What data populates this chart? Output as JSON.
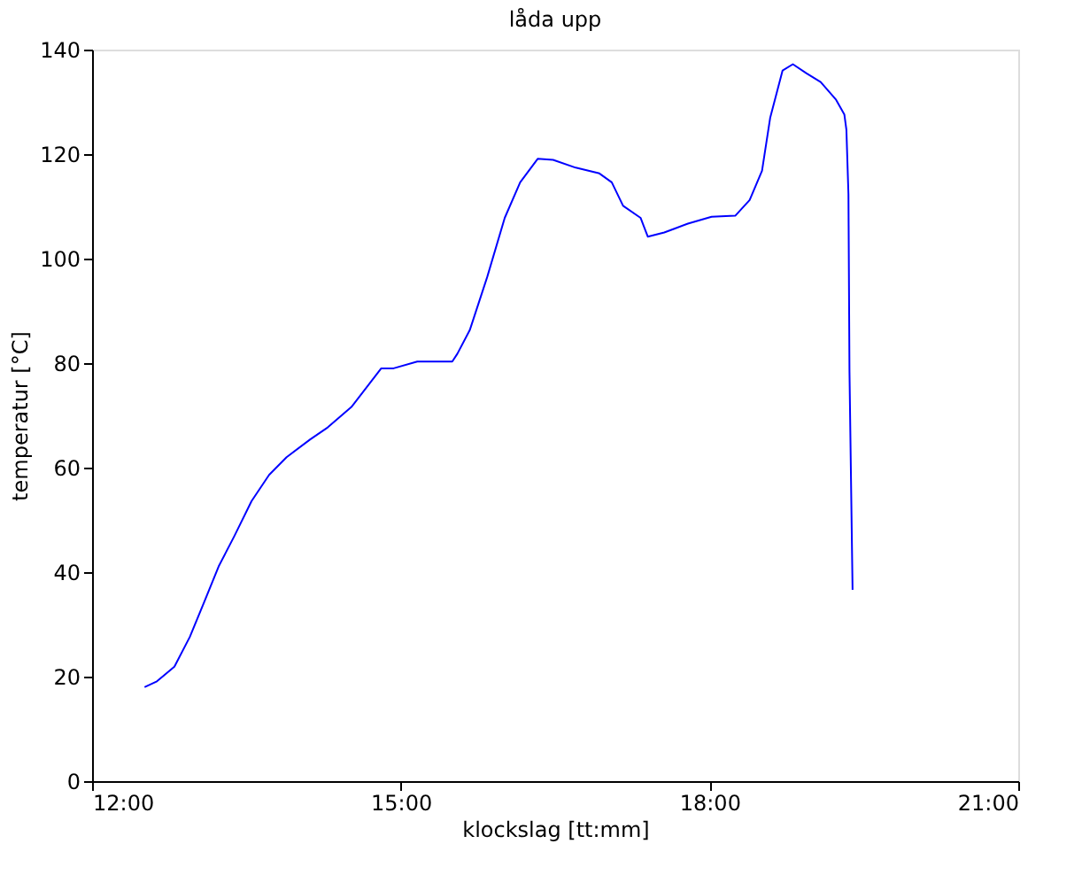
{
  "chart_data": {
    "type": "line",
    "title": "låda upp",
    "xlabel": "klockslag [tt:mm]",
    "ylabel": "temperatur [°C]",
    "xlim": [
      12,
      21
    ],
    "ylim": [
      0,
      140
    ],
    "xticks": [
      {
        "value": 12,
        "label": "12:00"
      },
      {
        "value": 15,
        "label": "15:00"
      },
      {
        "value": 18,
        "label": "18:00"
      },
      {
        "value": 21,
        "label": "21:00"
      }
    ],
    "yticks": [
      0,
      20,
      40,
      60,
      80,
      100,
      120,
      140
    ],
    "grid": false,
    "legend": false,
    "series": [
      {
        "color": "#0000ff",
        "x": [
          12.51,
          12.63,
          12.8,
          12.95,
          13.09,
          13.23,
          13.38,
          13.55,
          13.72,
          13.89,
          14.12,
          14.29,
          14.52,
          14.81,
          14.93,
          15.16,
          15.5,
          15.55,
          15.67,
          15.84,
          16.01,
          16.16,
          16.33,
          16.48,
          16.7,
          16.93,
          17.05,
          17.16,
          17.33,
          17.4,
          17.56,
          17.79,
          18.02,
          18.25,
          18.39,
          18.51,
          18.59,
          18.71,
          18.81,
          18.94,
          19.08,
          19.23,
          19.31,
          19.33,
          19.35,
          19.36,
          19.39
        ],
        "values": [
          18.0,
          19.1,
          21.9,
          27.6,
          34.3,
          41.1,
          46.8,
          53.6,
          58.6,
          62.0,
          65.4,
          67.7,
          71.6,
          79.0,
          79.0,
          80.3,
          80.3,
          81.8,
          86.3,
          96.5,
          107.8,
          114.6,
          119.1,
          118.9,
          117.4,
          116.3,
          114.6,
          110.1,
          107.8,
          104.2,
          105.0,
          106.7,
          108.0,
          108.2,
          111.2,
          116.8,
          127.0,
          136.0,
          137.2,
          135.5,
          133.8,
          130.4,
          127.6,
          124.7,
          112.3,
          78.4,
          36.6
        ]
      }
    ]
  }
}
